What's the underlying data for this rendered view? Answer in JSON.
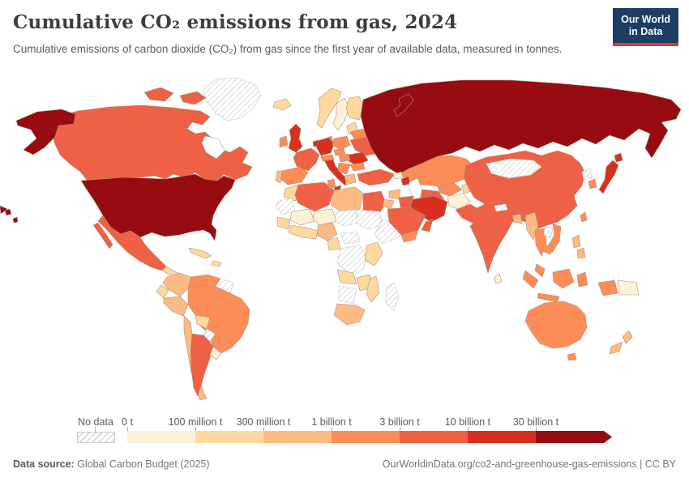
{
  "header": {
    "logo": {
      "line1": "Our World",
      "line2": "in Data"
    }
  },
  "chart_data": {
    "type": "choropleth-map",
    "title": "Cumulative CO₂ emissions from gas, 2024",
    "subtitle": "Cumulative emissions of carbon dioxide (CO₂) from gas since the first year of available data, measured in tonnes.",
    "unit": "tonnes",
    "no_data_label": "No data",
    "bins": [
      {
        "label": "0 t",
        "color": "#fdf0d9"
      },
      {
        "label": "100 million t",
        "color": "#fdd9a0"
      },
      {
        "label": "300 million t",
        "color": "#fdbb84"
      },
      {
        "label": "1 billion t",
        "color": "#fc8d59"
      },
      {
        "label": "3 billion t",
        "color": "#ee6144"
      },
      {
        "label": "10 billion t",
        "color": "#d7301f"
      },
      {
        "label": "30 billion t",
        "color": "#970c10"
      }
    ],
    "regions": {
      "united-states": 6,
      "russia": 6,
      "canada": 4,
      "mexico": 4,
      "argentina": 4,
      "france": 4,
      "ukraine": 4,
      "turkey": 4,
      "algeria": 4,
      "egypt": 4,
      "saudi-arabia": 4,
      "iraq": 4,
      "oman": 4,
      "gulf-states": 4,
      "turkmenistan": 4,
      "pakistan": 4,
      "india": 4,
      "china": 4,
      "united-kingdom": 5,
      "netherlands": 5,
      "germany": 5,
      "italy": 5,
      "romania": 5,
      "iran": 5,
      "azerbaijan": 5,
      "japan": 5,
      "venezuela": 3,
      "brazil": 3,
      "denmark": 3,
      "ireland": 3,
      "spain": 3,
      "poland": 3,
      "czechia": 3,
      "belarus": 3,
      "hungary": 3,
      "balkans": 3,
      "bulgaria": 3,
      "austria-switzerland": 3,
      "tunisia": 3,
      "kazakhstan": 3,
      "uzbekistan": 3,
      "yemen": 3,
      "thailand": 3,
      "vietnam": 3,
      "cambodia": 3,
      "malaysia": 3,
      "indonesia": 3,
      "south-korea": 3,
      "taiwan": 3,
      "australia": 3,
      "colombia": 2,
      "peru": 2,
      "chile": 2,
      "portugal": 2,
      "greece": 2,
      "libya": 2,
      "nigeria": 2,
      "south-africa": 2,
      "syria": 2,
      "jordan-israel": 2,
      "bangladesh": 2,
      "myanmar": 2,
      "philippines": 2,
      "new-zealand": 2,
      "central-america": 1,
      "cuba": 1,
      "hispaniola": 1,
      "ecuador": 1,
      "bolivia": 1,
      "iceland": 1,
      "norway": 1,
      "finland": 1,
      "baltics": 1,
      "morocco": 1,
      "senegal-guinea": 1,
      "west-africa-coast": 1,
      "cameroon-gabon": 1,
      "kenya-tanzania": 1,
      "angola": 1,
      "zambia-zimbabwe": 1,
      "mozambique": 1,
      "kyrgyzstan-tajikistan": 1,
      "uruguay": 0,
      "sweden": 0,
      "mali": 0,
      "niger": 0,
      "georgia-armenia": 0,
      "afghanistan": 0,
      "sri-lanka": 0,
      "papua-new-guinea": 0,
      "greenland": "no-data",
      "guyanas": "no-data",
      "paraguay": "no-data",
      "western-sahara-mauritania": "no-data",
      "chad": "no-data",
      "sudan": "no-data",
      "horn-of-africa": "no-data",
      "central-african-republic": "no-data",
      "dr-congo": "no-data",
      "namibia-botswana": "no-data",
      "madagascar": "no-data",
      "mongolia": "no-data",
      "laos": "no-data",
      "north-korea": "no-data",
      "nepal": "no-data"
    }
  },
  "footer": {
    "source_label": "Data source:",
    "source": " Global Carbon Budget (2025)",
    "link": "OurWorldinData.org/co2-and-greenhouse-gas-emissions | CC BY"
  }
}
